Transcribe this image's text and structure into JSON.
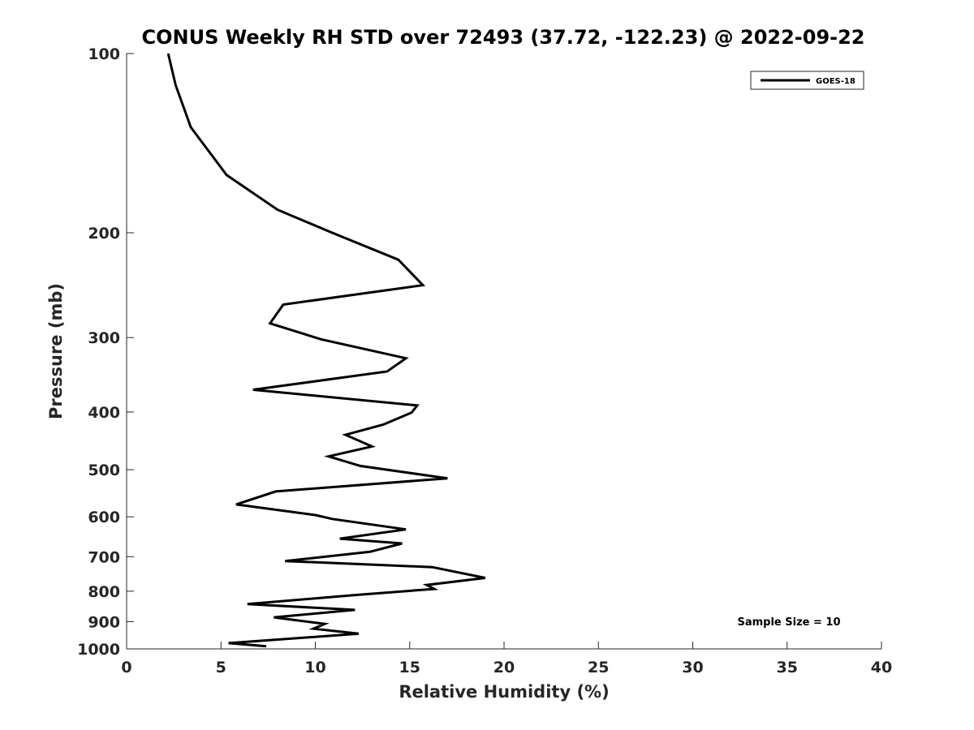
{
  "chart_data": {
    "type": "line",
    "title": "CONUS Weekly RH STD over 72493 (37.72, -122.23) @ 2022-09-22",
    "xlabel": "Relative Humidity (%)",
    "ylabel": "Pressure (mb)",
    "xlim": [
      0,
      40
    ],
    "ylim": [
      100,
      1000
    ],
    "y_scale": "log",
    "y_reversed": true,
    "grid": false,
    "legend_position": "top-right",
    "x_ticks": [
      0,
      5,
      10,
      15,
      20,
      25,
      30,
      35,
      40
    ],
    "y_ticks": [
      100,
      200,
      300,
      400,
      500,
      600,
      700,
      800,
      900,
      1000
    ],
    "series": [
      {
        "name": "GOES-18",
        "color": "#000000",
        "x": [
          2.2,
          2.6,
          3.4,
          5.3,
          8.0,
          10.9,
          14.4,
          15.7,
          8.3,
          7.6,
          10.3,
          14.8,
          13.8,
          6.7,
          15.4,
          15.1,
          13.6,
          11.6,
          13.0,
          10.7,
          12.4,
          17.0,
          7.9,
          5.8,
          10.0,
          10.9,
          14.8,
          11.3,
          14.6,
          12.9,
          8.4,
          16.2,
          19.0,
          15.9,
          16.3,
          12.1,
          6.4,
          12.1,
          7.8,
          10.5,
          9.9,
          12.3,
          5.4,
          7.4
        ],
        "y": [
          100,
          113,
          133,
          160,
          183,
          200,
          222,
          245,
          264,
          284,
          302,
          325,
          342,
          367,
          390,
          401,
          420,
          437,
          457,
          475,
          493,
          517,
          544,
          572,
          596,
          605,
          630,
          653,
          665,
          687,
          712,
          729,
          760,
          781,
          793,
          812,
          841,
          860,
          885,
          908,
          925,
          943,
          978,
          990
        ]
      }
    ],
    "annotations": [
      "Sample Size = 10"
    ]
  }
}
